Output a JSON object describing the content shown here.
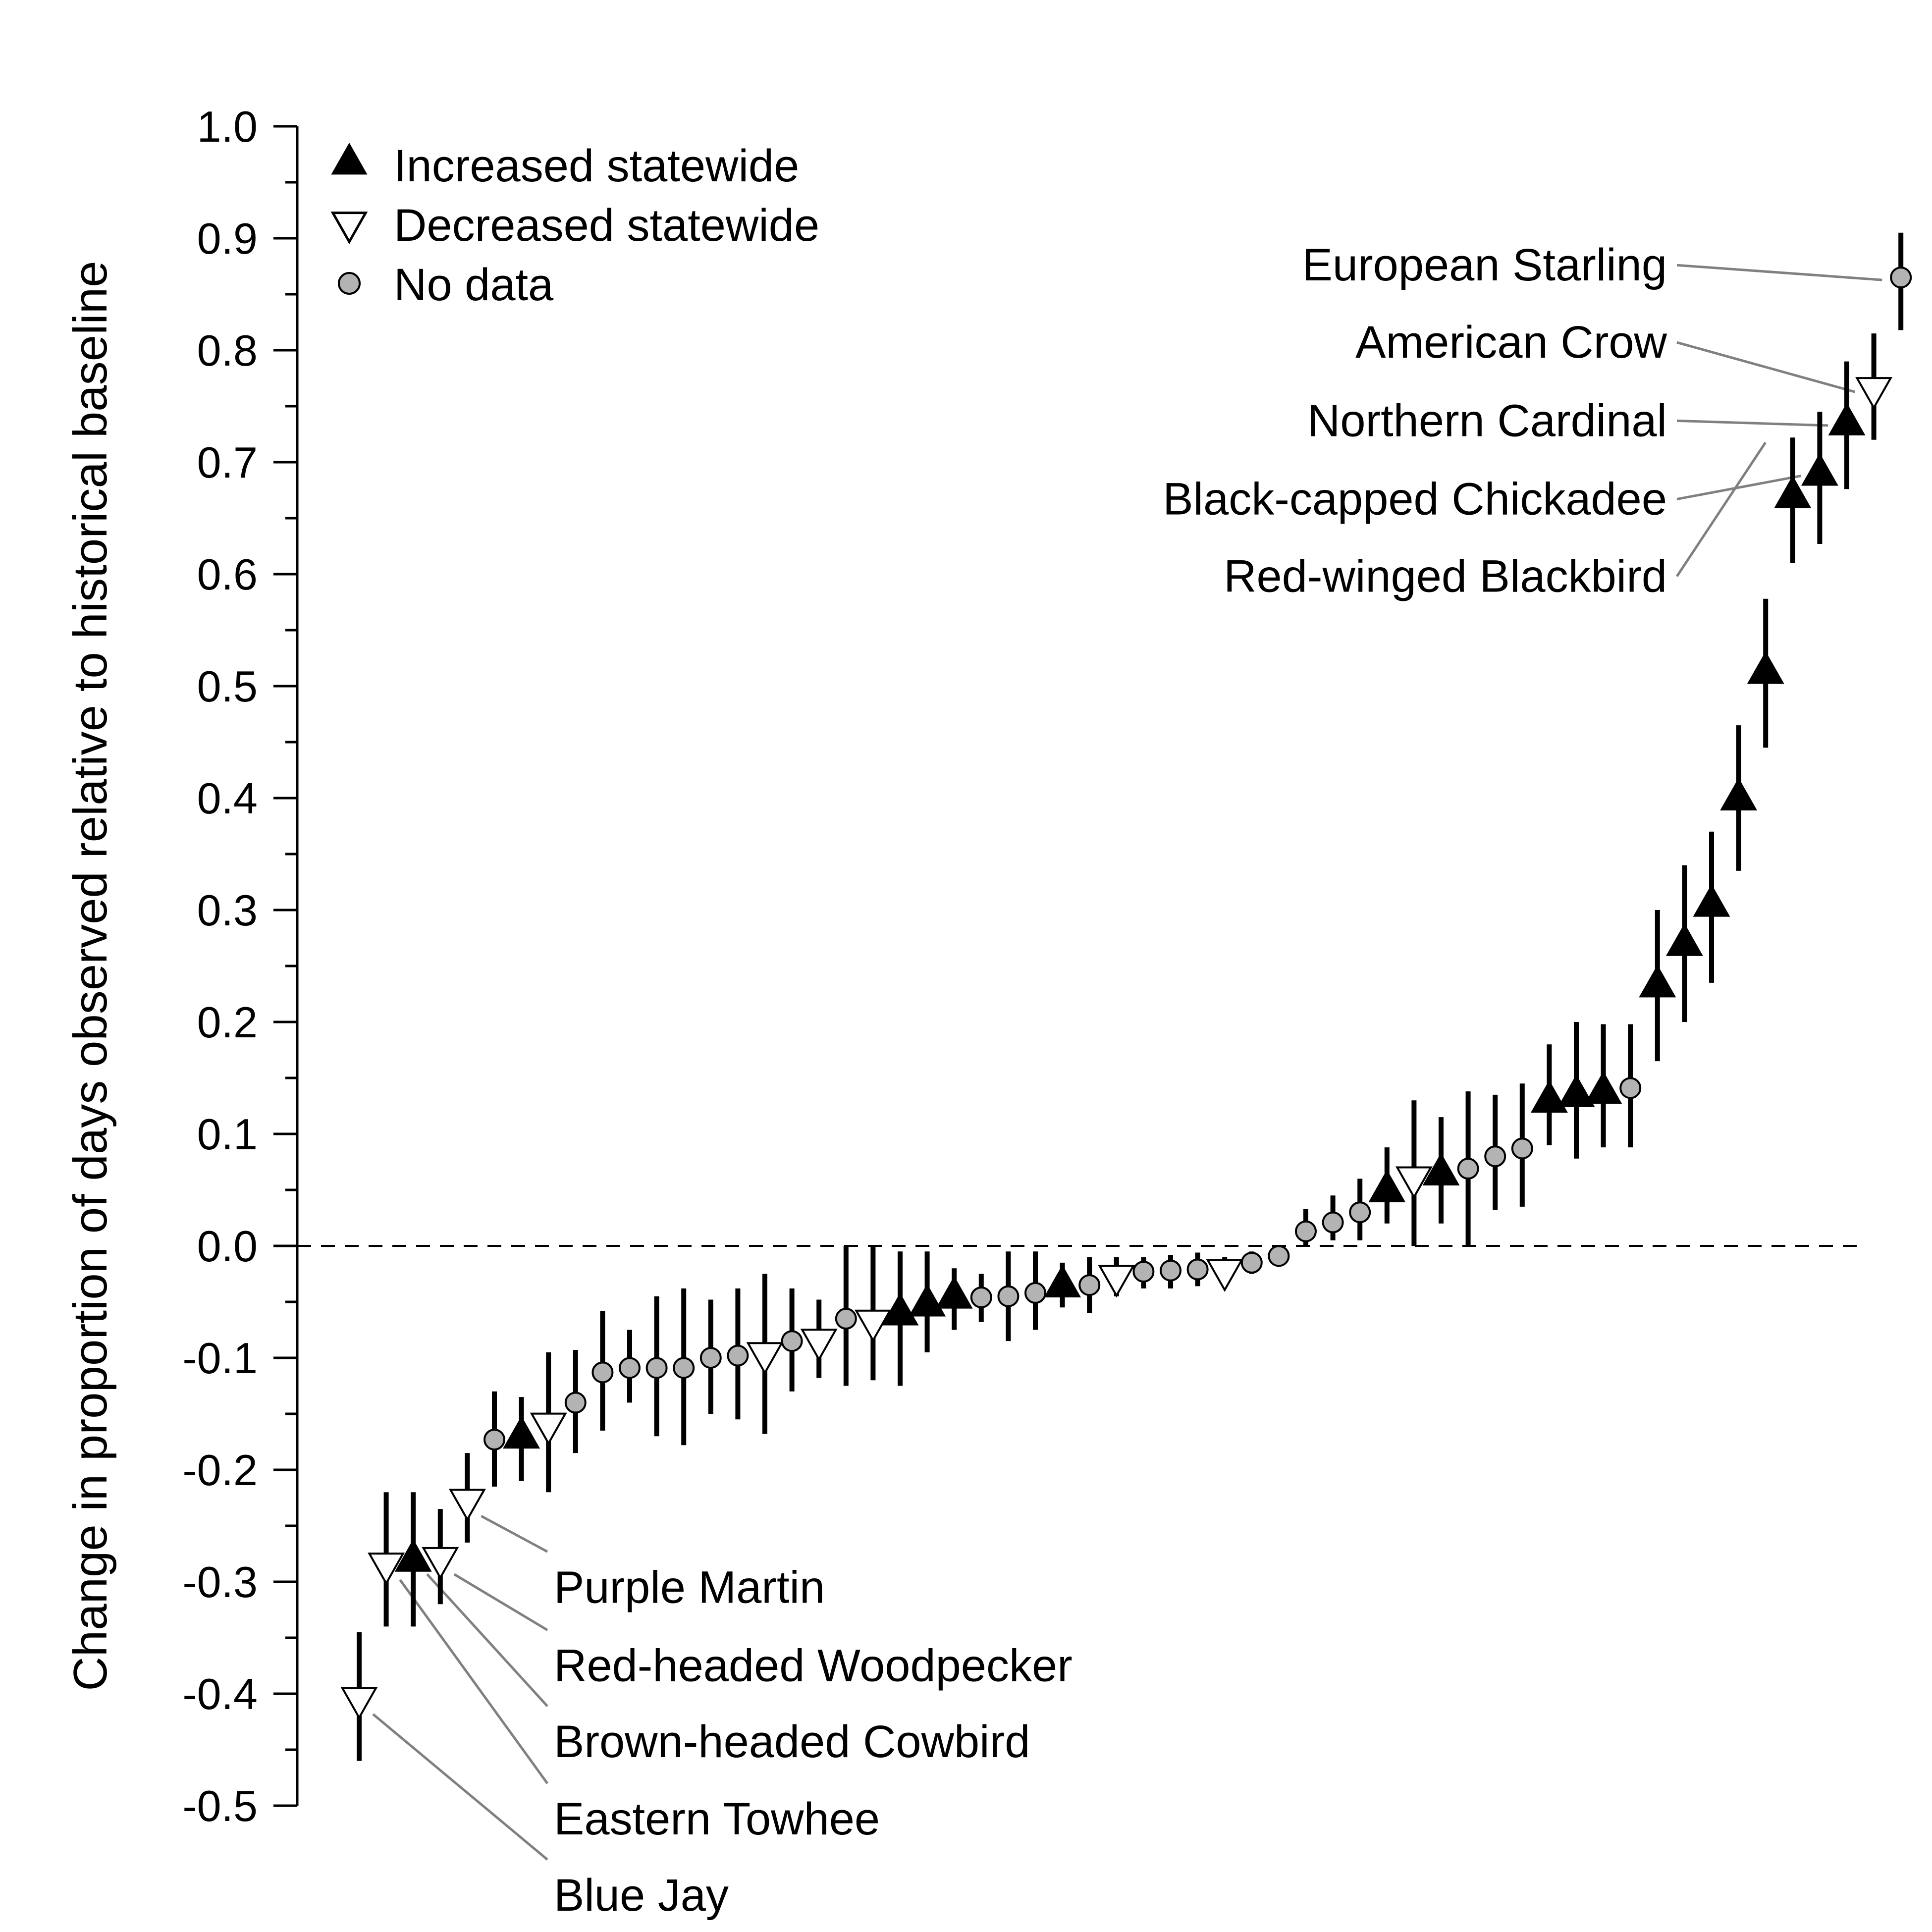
{
  "chart_data": {
    "type": "scatter",
    "title": "",
    "xlabel": "",
    "ylabel": "Change in proportion of days observed relative to historical baseline",
    "ylim": [
      -0.5,
      1.0
    ],
    "y_ticks": [
      "1.0",
      "0.9",
      "0.8",
      "0.7",
      "0.6",
      "0.5",
      "0.4",
      "0.3",
      "0.2",
      "0.1",
      "0.0",
      "-0.1",
      "-0.2",
      "-0.3",
      "-0.4",
      "-0.5"
    ],
    "y_tick_values": [
      1.0,
      0.9,
      0.8,
      0.7,
      0.6,
      0.5,
      0.4,
      0.3,
      0.2,
      0.1,
      0.0,
      -0.1,
      -0.2,
      -0.3,
      -0.4,
      -0.5
    ],
    "reference_line": 0.0,
    "grid": false,
    "legend_position": "top-left",
    "legend": [
      {
        "key": "inc",
        "label": "Increased statewide"
      },
      {
        "key": "dec",
        "label": "Decreased statewide"
      },
      {
        "key": "nd",
        "label": "No data"
      }
    ],
    "colors": {
      "inc": "#000000",
      "dec": "#ffffff",
      "nd": "#b3b3b3",
      "leader": "#808080"
    },
    "points": [
      {
        "rank": 1,
        "y": -0.405,
        "lo": -0.46,
        "hi": -0.345,
        "status": "dec"
      },
      {
        "rank": 2,
        "y": -0.285,
        "lo": -0.34,
        "hi": -0.22,
        "status": "dec"
      },
      {
        "rank": 3,
        "y": -0.28,
        "lo": -0.34,
        "hi": -0.22,
        "status": "inc"
      },
      {
        "rank": 4,
        "y": -0.28,
        "lo": -0.32,
        "hi": -0.235,
        "status": "dec"
      },
      {
        "rank": 5,
        "y": -0.228,
        "lo": -0.265,
        "hi": -0.185,
        "status": "dec"
      },
      {
        "rank": 6,
        "y": -0.173,
        "lo": -0.215,
        "hi": -0.13,
        "status": "nd"
      },
      {
        "rank": 7,
        "y": -0.17,
        "lo": -0.21,
        "hi": -0.135,
        "status": "inc"
      },
      {
        "rank": 8,
        "y": -0.16,
        "lo": -0.22,
        "hi": -0.095,
        "status": "dec"
      },
      {
        "rank": 9,
        "y": -0.14,
        "lo": -0.185,
        "hi": -0.093,
        "status": "nd"
      },
      {
        "rank": 10,
        "y": -0.113,
        "lo": -0.165,
        "hi": -0.058,
        "status": "nd"
      },
      {
        "rank": 11,
        "y": -0.109,
        "lo": -0.14,
        "hi": -0.075,
        "status": "nd"
      },
      {
        "rank": 12,
        "y": -0.109,
        "lo": -0.17,
        "hi": -0.045,
        "status": "nd"
      },
      {
        "rank": 13,
        "y": -0.109,
        "lo": -0.178,
        "hi": -0.038,
        "status": "nd"
      },
      {
        "rank": 14,
        "y": -0.1,
        "lo": -0.15,
        "hi": -0.048,
        "status": "nd"
      },
      {
        "rank": 15,
        "y": -0.098,
        "lo": -0.155,
        "hi": -0.038,
        "status": "nd"
      },
      {
        "rank": 16,
        "y": -0.097,
        "lo": -0.168,
        "hi": -0.025,
        "status": "dec"
      },
      {
        "rank": 17,
        "y": -0.085,
        "lo": -0.13,
        "hi": -0.038,
        "status": "nd"
      },
      {
        "rank": 18,
        "y": -0.085,
        "lo": -0.118,
        "hi": -0.048,
        "status": "dec"
      },
      {
        "rank": 19,
        "y": -0.065,
        "lo": -0.125,
        "hi": 0.0,
        "status": "nd"
      },
      {
        "rank": 20,
        "y": -0.068,
        "lo": -0.12,
        "hi": 0.0,
        "status": "dec"
      },
      {
        "rank": 21,
        "y": -0.06,
        "lo": -0.125,
        "hi": -0.005,
        "status": "inc"
      },
      {
        "rank": 22,
        "y": -0.052,
        "lo": -0.095,
        "hi": -0.005,
        "status": "inc"
      },
      {
        "rank": 23,
        "y": -0.045,
        "lo": -0.075,
        "hi": -0.02,
        "status": "inc"
      },
      {
        "rank": 24,
        "y": -0.046,
        "lo": -0.068,
        "hi": -0.025,
        "status": "nd"
      },
      {
        "rank": 25,
        "y": -0.045,
        "lo": -0.085,
        "hi": -0.005,
        "status": "nd"
      },
      {
        "rank": 26,
        "y": -0.042,
        "lo": -0.075,
        "hi": -0.005,
        "status": "nd"
      },
      {
        "rank": 27,
        "y": -0.035,
        "lo": -0.055,
        "hi": -0.015,
        "status": "inc"
      },
      {
        "rank": 28,
        "y": -0.035,
        "lo": -0.06,
        "hi": -0.01,
        "status": "nd"
      },
      {
        "rank": 29,
        "y": -0.028,
        "lo": -0.045,
        "hi": -0.01,
        "status": "dec"
      },
      {
        "rank": 30,
        "y": -0.023,
        "lo": -0.038,
        "hi": -0.01,
        "status": "nd"
      },
      {
        "rank": 31,
        "y": -0.022,
        "lo": -0.038,
        "hi": -0.008,
        "status": "nd"
      },
      {
        "rank": 32,
        "y": -0.021,
        "lo": -0.036,
        "hi": -0.006,
        "status": "nd"
      },
      {
        "rank": 33,
        "y": -0.023,
        "lo": -0.035,
        "hi": -0.01,
        "status": "dec"
      },
      {
        "rank": 34,
        "y": -0.015,
        "lo": -0.025,
        "hi": -0.005,
        "status": "nd"
      },
      {
        "rank": 35,
        "y": -0.009,
        "lo": -0.016,
        "hi": -0.002,
        "status": "nd"
      },
      {
        "rank": 36,
        "y": 0.013,
        "lo": 0.0,
        "hi": 0.033,
        "status": "nd"
      },
      {
        "rank": 37,
        "y": 0.021,
        "lo": 0.005,
        "hi": 0.045,
        "status": "nd"
      },
      {
        "rank": 38,
        "y": 0.03,
        "lo": 0.005,
        "hi": 0.06,
        "status": "nd"
      },
      {
        "rank": 39,
        "y": 0.05,
        "lo": 0.02,
        "hi": 0.088,
        "status": "inc"
      },
      {
        "rank": 40,
        "y": 0.06,
        "lo": 0.0,
        "hi": 0.13,
        "status": "dec"
      },
      {
        "rank": 41,
        "y": 0.065,
        "lo": 0.02,
        "hi": 0.115,
        "status": "inc"
      },
      {
        "rank": 42,
        "y": 0.069,
        "lo": 0.0,
        "hi": 0.138,
        "status": "nd"
      },
      {
        "rank": 43,
        "y": 0.08,
        "lo": 0.032,
        "hi": 0.135,
        "status": "nd"
      },
      {
        "rank": 44,
        "y": 0.087,
        "lo": 0.035,
        "hi": 0.145,
        "status": "nd"
      },
      {
        "rank": 45,
        "y": 0.13,
        "lo": 0.09,
        "hi": 0.18,
        "status": "inc"
      },
      {
        "rank": 46,
        "y": 0.135,
        "lo": 0.078,
        "hi": 0.2,
        "status": "inc"
      },
      {
        "rank": 47,
        "y": 0.138,
        "lo": 0.088,
        "hi": 0.198,
        "status": "inc"
      },
      {
        "rank": 48,
        "y": 0.141,
        "lo": 0.088,
        "hi": 0.198,
        "status": "nd"
      },
      {
        "rank": 49,
        "y": 0.233,
        "lo": 0.165,
        "hi": 0.3,
        "status": "inc"
      },
      {
        "rank": 50,
        "y": 0.27,
        "lo": 0.2,
        "hi": 0.34,
        "status": "inc"
      },
      {
        "rank": 51,
        "y": 0.305,
        "lo": 0.235,
        "hi": 0.37,
        "status": "inc"
      },
      {
        "rank": 52,
        "y": 0.4,
        "lo": 0.335,
        "hi": 0.465,
        "status": "inc"
      },
      {
        "rank": 53,
        "y": 0.513,
        "lo": 0.445,
        "hi": 0.578,
        "status": "inc"
      },
      {
        "rank": 54,
        "y": 0.67,
        "lo": 0.61,
        "hi": 0.722,
        "status": "inc"
      },
      {
        "rank": 55,
        "y": 0.69,
        "lo": 0.627,
        "hi": 0.745,
        "status": "inc"
      },
      {
        "rank": 56,
        "y": 0.735,
        "lo": 0.676,
        "hi": 0.79,
        "status": "inc"
      },
      {
        "rank": 57,
        "y": 0.765,
        "lo": 0.72,
        "hi": 0.815,
        "status": "dec"
      },
      {
        "rank": 58,
        "y": 0.865,
        "lo": 0.818,
        "hi": 0.905,
        "status": "nd"
      }
    ],
    "annotations": [
      {
        "label": "European Starling",
        "rank": 58,
        "side": "left",
        "y": 0.876
      },
      {
        "label": "American Crow",
        "rank": 57,
        "side": "left",
        "y": 0.807
      },
      {
        "label": "Northern Cardinal",
        "rank": 56,
        "side": "left",
        "y": 0.737
      },
      {
        "label": "Black-capped Chickadee",
        "rank": 55,
        "side": "left",
        "y": 0.667
      },
      {
        "label": "Red-winged Blackbird",
        "rank": 54,
        "side": "left",
        "y": 0.598
      },
      {
        "label": "Purple Martin",
        "rank": 5,
        "side": "right",
        "y": -0.305
      },
      {
        "label": "Red-headed Woodpecker",
        "rank": 4,
        "side": "right",
        "y": -0.375
      },
      {
        "label": "Brown-headed Cowbird",
        "rank": 3,
        "side": "right",
        "y": -0.443
      },
      {
        "label": "Eastern Towhee",
        "rank": 2,
        "side": "right",
        "y": -0.512
      },
      {
        "label": "Blue Jay",
        "rank": 1,
        "side": "right",
        "y": -0.58
      }
    ]
  }
}
